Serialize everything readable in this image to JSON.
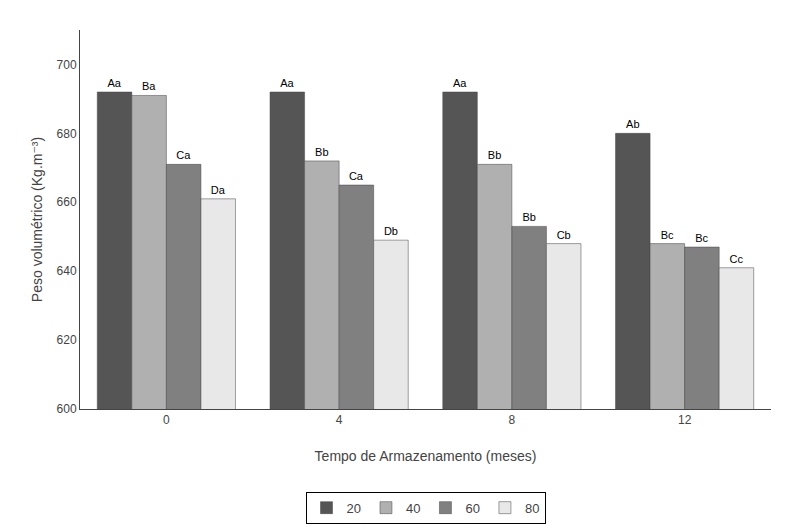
{
  "chart_data": {
    "type": "bar",
    "xlabel": "Tempo de Armazenamento (meses)",
    "ylabel": "Peso volumétrico (Kg.m⁻³)",
    "categories": [
      0,
      4,
      8,
      12
    ],
    "series": [
      {
        "name": "20",
        "color": "#555555",
        "values": [
          692,
          692,
          692,
          680
        ],
        "annotations": [
          "Aa",
          "Aa",
          "Aa",
          "Ab"
        ]
      },
      {
        "name": "40",
        "color": "#b0b0b0",
        "values": [
          691,
          672,
          671,
          648
        ],
        "annotations": [
          "Ba",
          "Bb",
          "Bb",
          "Bc"
        ]
      },
      {
        "name": "60",
        "color": "#808080",
        "values": [
          671,
          665,
          653,
          647
        ],
        "annotations": [
          "Ca",
          "Ca",
          "Bb",
          "Bc"
        ]
      },
      {
        "name": "80",
        "color": "#e8e8e8",
        "values": [
          661,
          649,
          648,
          641
        ],
        "annotations": [
          "Da",
          "Db",
          "Cb",
          "Cc"
        ]
      }
    ],
    "ylim": [
      600,
      710
    ],
    "yticks": [
      600,
      620,
      640,
      660,
      680,
      700
    ],
    "grid": false,
    "legend": "bottom"
  }
}
